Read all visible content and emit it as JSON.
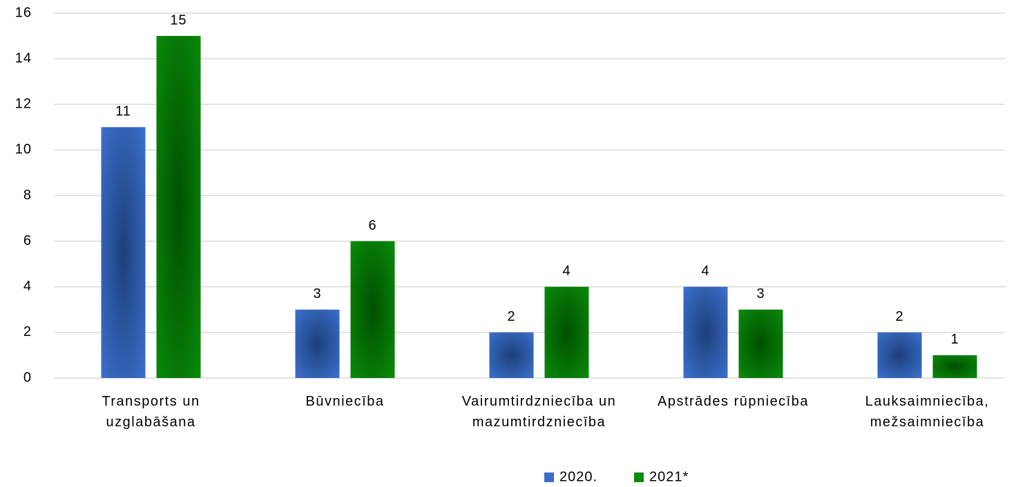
{
  "chart_data": {
    "type": "bar",
    "categories": [
      "Transports un uzglabāšana",
      "Būvniecība",
      "Vairumtirdzniecība un mazumtirdzniecība",
      "Apstrādes rūpniecība",
      "Lauksaimniecība, mežsaimniecība"
    ],
    "series": [
      {
        "name": "2020.",
        "color": "#3a6fc9",
        "values": [
          11,
          3,
          2,
          4,
          2
        ]
      },
      {
        "name": "2021*",
        "color": "#0a8a0a",
        "values": [
          15,
          6,
          4,
          3,
          1
        ]
      }
    ],
    "ylim": [
      0,
      16
    ],
    "yticks": [
      0,
      2,
      4,
      6,
      8,
      10,
      12,
      14,
      16
    ],
    "grid": true,
    "legend": "bottom"
  }
}
